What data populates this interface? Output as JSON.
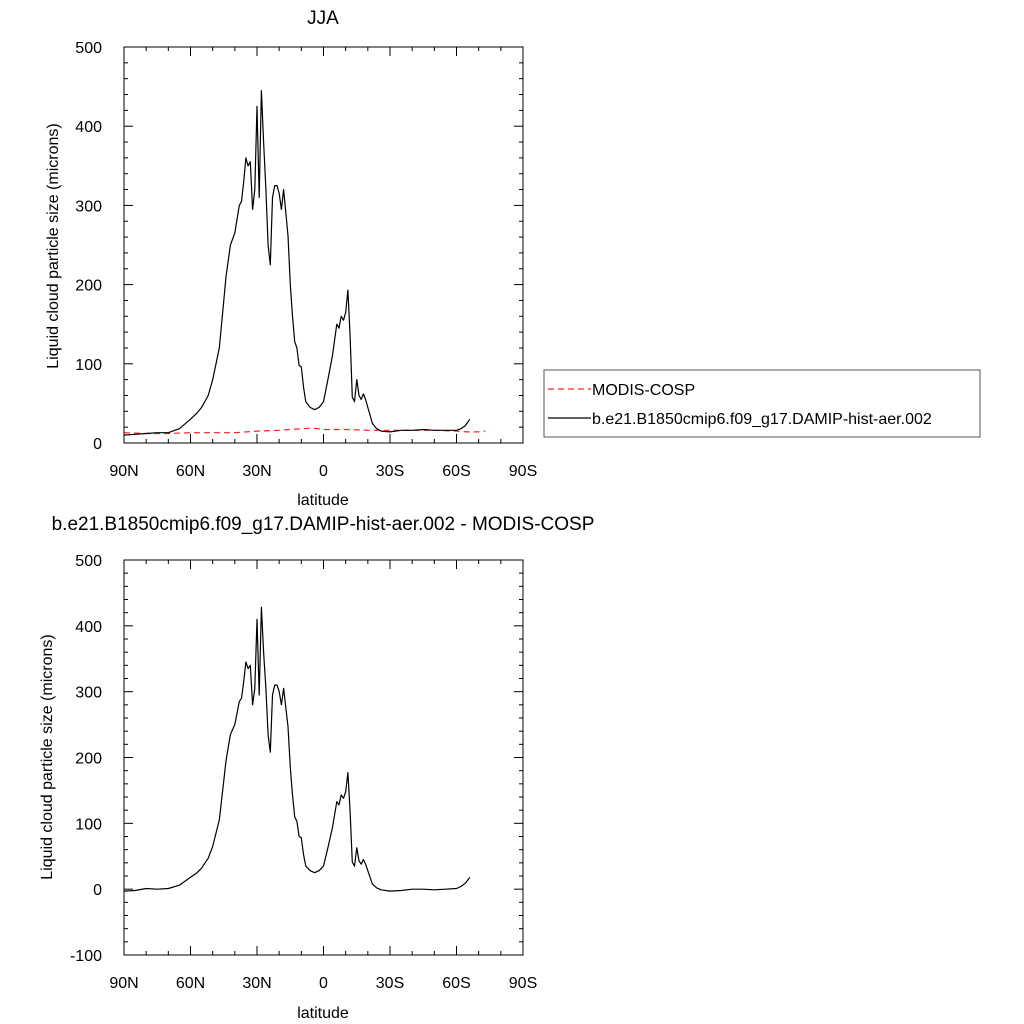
{
  "chart_data": [
    {
      "type": "line",
      "title": "JJA",
      "xlabel": "latitude",
      "ylabel": "Liquid cloud particle size (microns)",
      "xlim": [
        90,
        -90
      ],
      "ylim": [
        0,
        500
      ],
      "x_ticks": [
        90,
        60,
        30,
        0,
        -30,
        -60,
        -90
      ],
      "x_tick_labels": [
        "90N",
        "60N",
        "30N",
        "0",
        "30S",
        "60S",
        "90S"
      ],
      "y_ticks": [
        0,
        100,
        200,
        300,
        400,
        500
      ],
      "y_tick_labels": [
        "0",
        "100",
        "200",
        "300",
        "400",
        "500"
      ],
      "grid": false,
      "legend": {
        "placement": "right",
        "entries": [
          {
            "name": "MODIS-COSP",
            "color": "#ff2020",
            "style": "dashed"
          },
          {
            "name": "b.e21.B1850cmip6.f09_g17.DAMIP-hist-aer.002",
            "color": "#000000",
            "style": "solid"
          }
        ]
      },
      "series": [
        {
          "name": "MODIS-COSP",
          "color": "#ff2020",
          "style": "dashed",
          "x": [
            90,
            80,
            70,
            60,
            50,
            40,
            30,
            20,
            10,
            5,
            0,
            -10,
            -20,
            -30,
            -40,
            -50,
            -60,
            -65,
            -70,
            -73
          ],
          "y": [
            13,
            12,
            12,
            13,
            13,
            13,
            15,
            16,
            18,
            19,
            17,
            17,
            16,
            16,
            16,
            16,
            15,
            14,
            14,
            15
          ]
        },
        {
          "name": "b.e21.B1850cmip6.f09_g17.DAMIP-hist-aer.002",
          "color": "#000000",
          "style": "solid",
          "x": [
            90,
            85,
            80,
            75,
            70,
            65,
            60,
            57,
            55,
            52,
            50,
            47,
            45,
            44,
            42,
            40,
            38,
            37,
            36,
            35,
            34,
            33,
            32,
            31,
            30,
            29,
            28,
            27,
            26,
            25,
            24,
            23,
            22,
            21,
            20,
            19,
            18,
            16,
            15,
            14,
            13,
            12,
            11,
            10,
            9,
            8,
            6,
            4,
            2,
            0,
            -2,
            -4,
            -5,
            -6,
            -7,
            -8,
            -9,
            -10,
            -11,
            -12,
            -13,
            -14,
            -15,
            -16,
            -17,
            -18,
            -19,
            -20,
            -21,
            -22,
            -24,
            -26,
            -30,
            -35,
            -40,
            -45,
            -50,
            -55,
            -60,
            -62,
            -64,
            -66
          ],
          "y": [
            10,
            11,
            12,
            13,
            13,
            18,
            30,
            38,
            45,
            60,
            80,
            120,
            180,
            210,
            250,
            265,
            300,
            305,
            330,
            360,
            350,
            355,
            295,
            320,
            425,
            310,
            445,
            380,
            320,
            250,
            225,
            310,
            325,
            325,
            315,
            295,
            320,
            262,
            200,
            160,
            128,
            120,
            98,
            96,
            70,
            52,
            45,
            42,
            45,
            52,
            80,
            110,
            130,
            150,
            145,
            160,
            155,
            165,
            193,
            135,
            58,
            52,
            80,
            60,
            55,
            62,
            55,
            45,
            35,
            25,
            18,
            15,
            14,
            16,
            16,
            17,
            16,
            16,
            16,
            18,
            22,
            30
          ]
        }
      ]
    },
    {
      "type": "line",
      "title": "b.e21.B1850cmip6.f09_g17.DAMIP-hist-aer.002 - MODIS-COSP",
      "xlabel": "latitude",
      "ylabel": "Liquid cloud particle size (microns)",
      "xlim": [
        90,
        -90
      ],
      "ylim": [
        -100,
        500
      ],
      "x_ticks": [
        90,
        60,
        30,
        0,
        -30,
        -60,
        -90
      ],
      "x_tick_labels": [
        "90N",
        "60N",
        "30N",
        "0",
        "30S",
        "60S",
        "90S"
      ],
      "y_ticks": [
        -100,
        0,
        100,
        200,
        300,
        400,
        500
      ],
      "y_tick_labels": [
        "-100",
        "0",
        "100",
        "200",
        "300",
        "400",
        "500"
      ],
      "grid": false,
      "series": [
        {
          "color": "#000000",
          "style": "solid",
          "x": [
            90,
            85,
            80,
            75,
            70,
            65,
            60,
            57,
            55,
            52,
            50,
            47,
            45,
            44,
            42,
            40,
            38,
            37,
            36,
            35,
            34,
            33,
            32,
            31,
            30,
            29,
            28,
            27,
            26,
            25,
            24,
            23,
            22,
            21,
            20,
            19,
            18,
            16,
            15,
            14,
            13,
            12,
            11,
            10,
            9,
            8,
            6,
            4,
            2,
            0,
            -2,
            -4,
            -5,
            -6,
            -7,
            -8,
            -9,
            -10,
            -11,
            -12,
            -13,
            -14,
            -15,
            -16,
            -17,
            -18,
            -19,
            -20,
            -21,
            -22,
            -24,
            -26,
            -30,
            -35,
            -40,
            -45,
            -50,
            -55,
            -60,
            -62,
            -64,
            -66
          ],
          "y": [
            -3,
            -2,
            1,
            0,
            1,
            6,
            18,
            25,
            32,
            47,
            65,
            105,
            165,
            195,
            235,
            250,
            285,
            290,
            315,
            345,
            335,
            340,
            280,
            305,
            410,
            295,
            428,
            360,
            305,
            235,
            208,
            295,
            310,
            310,
            300,
            280,
            305,
            247,
            185,
            143,
            110,
            103,
            80,
            78,
            52,
            35,
            28,
            25,
            28,
            35,
            63,
            93,
            113,
            133,
            128,
            143,
            138,
            148,
            177,
            118,
            41,
            35,
            63,
            43,
            38,
            45,
            38,
            28,
            18,
            8,
            2,
            -1,
            -3,
            -2,
            0,
            0,
            -1,
            0,
            1,
            4,
            9,
            18
          ]
        }
      ]
    }
  ]
}
